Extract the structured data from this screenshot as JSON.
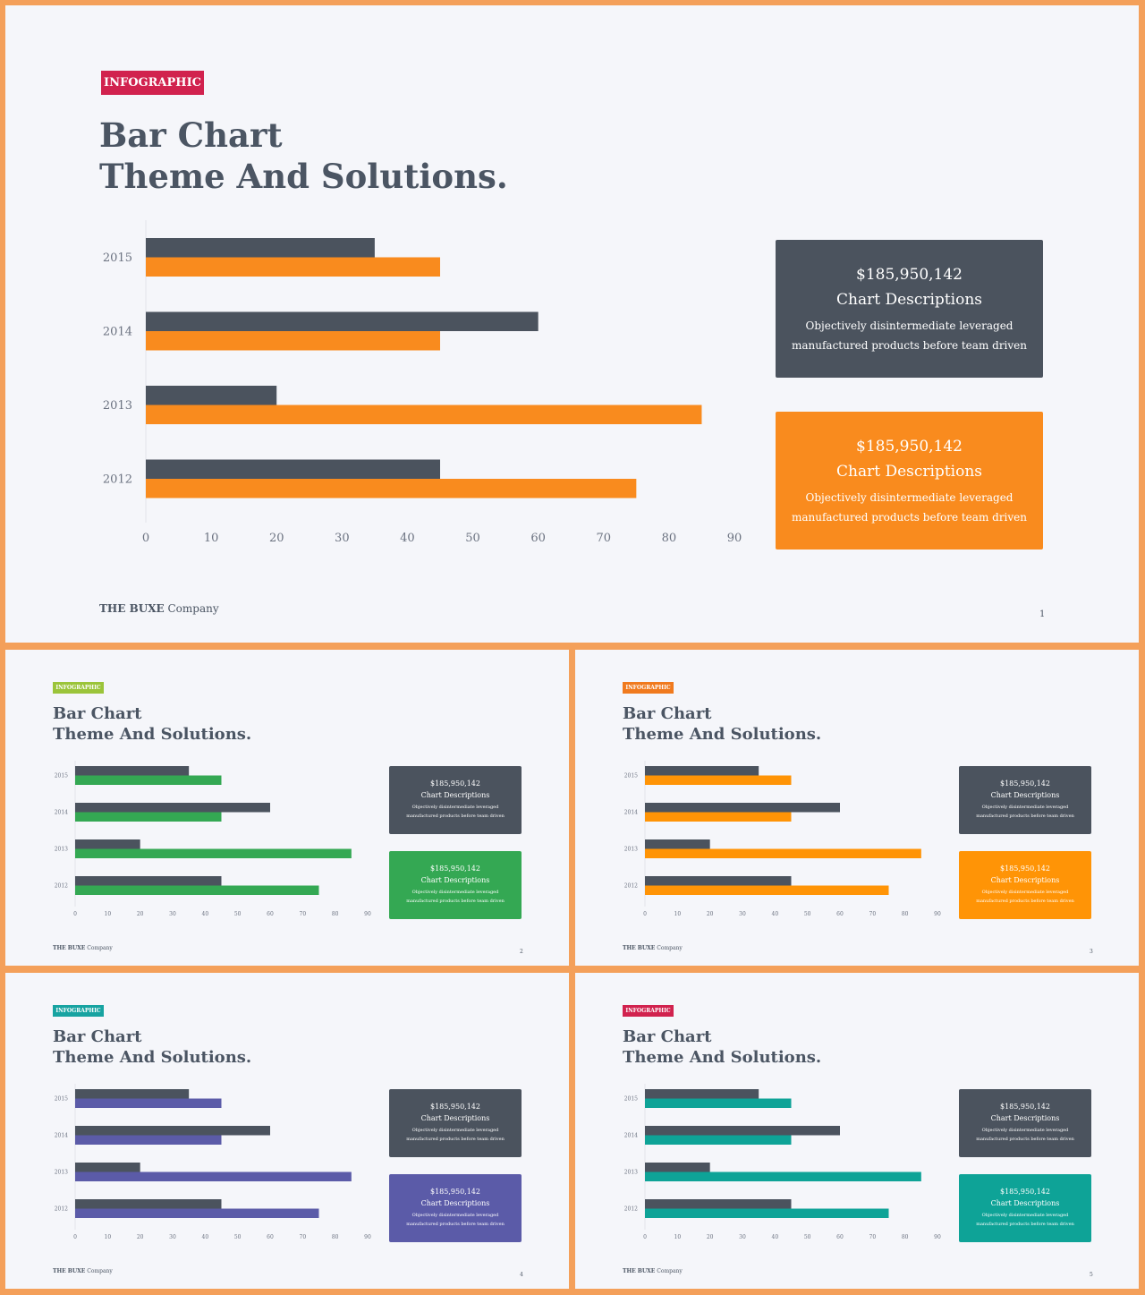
{
  "colors": {
    "frame": "#F4A05A",
    "background": "#F5F6FA",
    "dark": "#4B535E",
    "text": "#4B5563"
  },
  "slides": [
    {
      "tag": "INFOGRAPHIC",
      "tag_color": "#D1224E",
      "accent": "#F98B1E",
      "title_line1": "Bar Chart",
      "title_line2": "Theme And Solutions.",
      "card1": {
        "amount": "$185,950,142",
        "heading": "Chart Descriptions",
        "desc_line1": "Objectively disintermediate leveraged",
        "desc_line2": "manufactured products before team driven"
      },
      "card2": {
        "amount": "$185,950,142",
        "heading": "Chart Descriptions",
        "desc_line1": "Objectively disintermediate leveraged",
        "desc_line2": "manufactured products before team driven"
      },
      "company_bold": "THE BUXE",
      "company_rest": "Company",
      "page": "1"
    },
    {
      "tag": "INFOGRAPHIC",
      "tag_color": "#9BC43A",
      "accent": "#34A853",
      "title_line1": "Bar Chart",
      "title_line2": "Theme And Solutions.",
      "card1": {
        "amount": "$185,950,142",
        "heading": "Chart Descriptions",
        "desc_line1": "Objectively disintermediate leveraged",
        "desc_line2": "manufactured products before team driven"
      },
      "card2": {
        "amount": "$185,950,142",
        "heading": "Chart Descriptions",
        "desc_line1": "Objectively disintermediate leveraged",
        "desc_line2": "manufactured products before team driven"
      },
      "company_bold": "THE BUXE",
      "company_rest": "Company",
      "page": "2"
    },
    {
      "tag": "INFOGRAPHIC",
      "tag_color": "#F07A1E",
      "accent": "#FF9406",
      "title_line1": "Bar Chart",
      "title_line2": "Theme And Solutions.",
      "card1": {
        "amount": "$185,950,142",
        "heading": "Chart Descriptions",
        "desc_line1": "Objectively disintermediate leveraged",
        "desc_line2": "manufactured products before team driven"
      },
      "card2": {
        "amount": "$185,950,142",
        "heading": "Chart Descriptions",
        "desc_line1": "Objectively disintermediate leveraged",
        "desc_line2": "manufactured products before team driven"
      },
      "company_bold": "THE BUXE",
      "company_rest": "Company",
      "page": "3"
    },
    {
      "tag": "INFOGRAPHIC",
      "tag_color": "#17A3A1",
      "accent": "#5B5BA8",
      "title_line1": "Bar Chart",
      "title_line2": "Theme And Solutions.",
      "card1": {
        "amount": "$185,950,142",
        "heading": "Chart Descriptions",
        "desc_line1": "Objectively disintermediate leveraged",
        "desc_line2": "manufactured products before team driven"
      },
      "card2": {
        "amount": "$185,950,142",
        "heading": "Chart Descriptions",
        "desc_line1": "Objectively disintermediate leveraged",
        "desc_line2": "manufactured products before team driven"
      },
      "company_bold": "THE BUXE",
      "company_rest": "Company",
      "page": "4"
    },
    {
      "tag": "INFOGRAPHIC",
      "tag_color": "#D1224E",
      "accent": "#0EA397",
      "title_line1": "Bar Chart",
      "title_line2": "Theme And Solutions.",
      "card1": {
        "amount": "$185,950,142",
        "heading": "Chart Descriptions",
        "desc_line1": "Objectively disintermediate leveraged",
        "desc_line2": "manufactured products before team driven"
      },
      "card2": {
        "amount": "$185,950,142",
        "heading": "Chart Descriptions",
        "desc_line1": "Objectively disintermediate leveraged",
        "desc_line2": "manufactured products before team driven"
      },
      "company_bold": "THE BUXE",
      "company_rest": "Company",
      "page": "5"
    }
  ],
  "chart_data": {
    "type": "bar",
    "orientation": "horizontal",
    "categories": [
      "2015",
      "2014",
      "2013",
      "2012"
    ],
    "series": [
      {
        "values": [
          35,
          60,
          20,
          45
        ],
        "color": "#4B535E"
      },
      {
        "values": [
          45,
          45,
          85,
          75
        ],
        "color": "accent"
      }
    ],
    "xticks": [
      "0",
      "10",
      "20",
      "30",
      "40",
      "50",
      "60",
      "70",
      "80",
      "90"
    ],
    "xlim": [
      0,
      90
    ],
    "grid": false
  }
}
